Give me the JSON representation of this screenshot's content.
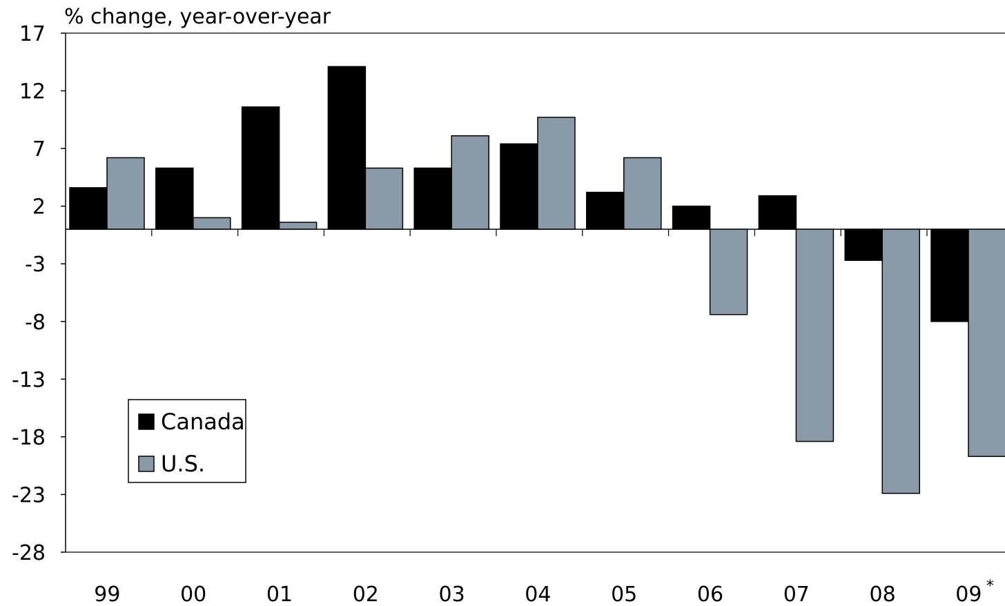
{
  "chart_data": {
    "type": "bar",
    "ylabel": "% change, year-over-year",
    "xlabel": "",
    "categories": [
      "99",
      "00",
      "01",
      "02",
      "03",
      "04",
      "05",
      "06",
      "07",
      "08",
      "09"
    ],
    "category_footnote_marker": "*",
    "footnote_category_index": 10,
    "ylim": [
      -28,
      17
    ],
    "yticks": [
      17,
      12,
      7,
      2,
      -3,
      -8,
      -13,
      -18,
      -23,
      -28
    ],
    "ytick_labels": [
      "17",
      "12",
      "7",
      "2",
      "-3",
      "-8",
      "-13",
      "-18",
      "-23",
      "-28"
    ],
    "series": [
      {
        "name": "Canada",
        "color": "#000000",
        "values": [
          3.6,
          5.3,
          10.6,
          14.1,
          5.3,
          7.4,
          3.2,
          2.0,
          2.9,
          -2.7,
          -8.0
        ]
      },
      {
        "name": "U.S.",
        "color": "#8a9aa6",
        "values": [
          6.2,
          1.0,
          0.6,
          5.3,
          8.1,
          9.7,
          6.2,
          -7.4,
          -18.4,
          -22.9,
          -19.7
        ]
      }
    ],
    "legend": {
      "position": "bottom-left",
      "items": [
        "Canada",
        "U.S."
      ]
    },
    "grid": false
  }
}
